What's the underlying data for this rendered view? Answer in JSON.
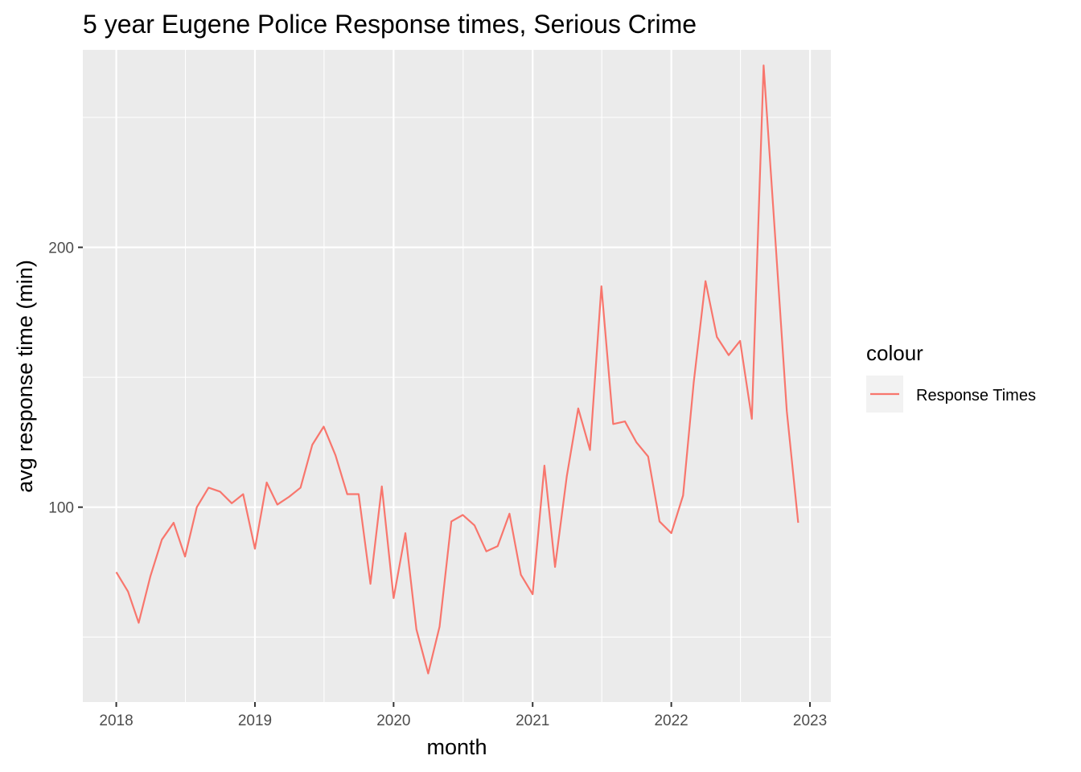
{
  "chart_data": {
    "type": "line",
    "title": "5 year Eugene Police Response times, Serious Crime",
    "xlabel": "month",
    "ylabel": "avg response time (min)",
    "x_ticks": [
      "2018",
      "2019",
      "2020",
      "2021",
      "2022",
      "2023"
    ],
    "y_ticks": [
      "100",
      "200"
    ],
    "xlim": [
      "2017-10-05",
      "2023-02-25"
    ],
    "ylim": [
      25,
      276
    ],
    "grid": true,
    "legend": {
      "title": "colour",
      "position": "right"
    },
    "series": [
      {
        "name": "Response Times",
        "color": "#f8766d",
        "x": [
          "2018-01",
          "2018-02",
          "2018-03",
          "2018-04",
          "2018-05",
          "2018-06",
          "2018-07",
          "2018-08",
          "2018-09",
          "2018-10",
          "2018-11",
          "2018-12",
          "2019-01",
          "2019-02",
          "2019-03",
          "2019-04",
          "2019-05",
          "2019-06",
          "2019-07",
          "2019-08",
          "2019-09",
          "2019-10",
          "2019-11",
          "2019-12",
          "2020-01",
          "2020-02",
          "2020-03",
          "2020-04",
          "2020-05",
          "2020-06",
          "2020-07",
          "2020-08",
          "2020-09",
          "2020-10",
          "2020-11",
          "2020-12",
          "2021-01",
          "2021-02",
          "2021-03",
          "2021-04",
          "2021-05",
          "2021-06",
          "2021-07",
          "2021-08",
          "2021-09",
          "2021-10",
          "2021-11",
          "2021-12",
          "2022-01",
          "2022-02",
          "2022-03",
          "2022-04",
          "2022-05",
          "2022-06",
          "2022-07",
          "2022-08",
          "2022-09",
          "2022-10",
          "2022-11",
          "2022-12"
        ],
        "values": [
          75,
          67.5,
          55.5,
          73.5,
          87.5,
          94,
          81,
          100,
          107.5,
          106,
          101.5,
          105,
          84,
          109.5,
          101,
          104,
          107.5,
          124,
          131,
          120,
          105,
          105,
          70.5,
          108,
          65,
          90,
          53,
          36,
          54,
          94.5,
          97,
          93,
          83,
          85,
          97.5,
          74,
          66.5,
          116,
          77,
          112,
          138,
          122,
          185,
          132,
          133,
          125,
          119.5,
          94.5,
          90,
          104.5,
          148,
          187,
          165.5,
          158.5,
          164,
          134,
          270,
          205,
          137,
          94
        ]
      }
    ]
  }
}
